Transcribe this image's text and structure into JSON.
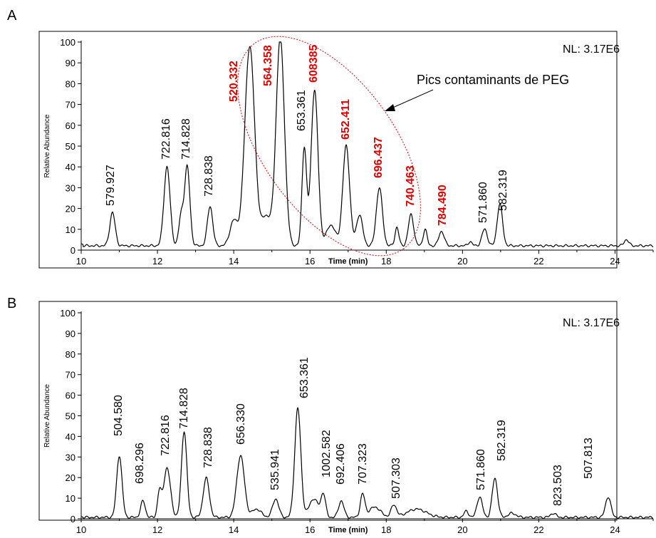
{
  "chart_data": [
    {
      "panel": "A",
      "type": "line",
      "xlabel": "Time (min)",
      "ylabel": "Relative Abundance",
      "xlim": [
        10,
        25
      ],
      "ylim": [
        0,
        100
      ],
      "x_ticks": [
        10,
        12,
        14,
        16,
        18,
        20,
        22,
        24
      ],
      "y_ticks": [
        0,
        10,
        20,
        30,
        40,
        50,
        60,
        70,
        80,
        90,
        100
      ],
      "nl_label": "NL: 3.17E6",
      "annotation": "Pics contaminants de PEG",
      "line_color": "#000000",
      "highlight_color": "#e00000",
      "peaks": [
        {
          "t": 10.82,
          "h": 16,
          "w": 0.07,
          "label": "579.927",
          "hl": false
        },
        {
          "t": 12.25,
          "h": 38,
          "w": 0.08,
          "label": "722.816",
          "hl": false
        },
        {
          "t": 12.78,
          "h": 38,
          "w": 0.07,
          "label": "714.828",
          "hl": false
        },
        {
          "t": 13.38,
          "h": 19,
          "w": 0.07,
          "label": "728.838",
          "hl": false
        },
        {
          "t": 14.42,
          "h": 96,
          "w": 0.13,
          "label": "520.332",
          "hl": true
        },
        {
          "t": 15.22,
          "h": 100,
          "w": 0.11,
          "label": "564.358",
          "hl": true
        },
        {
          "t": 15.85,
          "h": 47,
          "w": 0.06,
          "label": "653.361",
          "hl": false
        },
        {
          "t": 16.12,
          "h": 75,
          "w": 0.09,
          "label": "608385",
          "hl": true
        },
        {
          "t": 16.95,
          "h": 48,
          "w": 0.09,
          "label": "652.411",
          "hl": true
        },
        {
          "t": 17.82,
          "h": 28,
          "w": 0.08,
          "label": "696.437",
          "hl": true
        },
        {
          "t": 18.65,
          "h": 15,
          "w": 0.07,
          "label": "740.463",
          "hl": true
        },
        {
          "t": 19.45,
          "h": 7,
          "w": 0.07,
          "label": "784.490",
          "hl": true
        },
        {
          "t": 20.58,
          "h": 8,
          "w": 0.07,
          "label": "571.860",
          "hl": false
        },
        {
          "t": 20.98,
          "h": 20,
          "w": 0.07,
          "label": "582.319",
          "hl": false
        }
      ],
      "minor_peaks": [
        {
          "t": 12.62,
          "h": 14,
          "w": 0.06
        },
        {
          "t": 14.0,
          "h": 12,
          "w": 0.1
        },
        {
          "t": 14.85,
          "h": 14,
          "w": 0.12
        },
        {
          "t": 16.55,
          "h": 10,
          "w": 0.12
        },
        {
          "t": 17.3,
          "h": 15,
          "w": 0.08
        },
        {
          "t": 18.28,
          "h": 9,
          "w": 0.05
        },
        {
          "t": 19.02,
          "h": 8,
          "w": 0.05
        },
        {
          "t": 20.2,
          "h": 2,
          "w": 0.05
        },
        {
          "t": 24.3,
          "h": 3,
          "w": 0.06
        }
      ],
      "baseline": 3
    },
    {
      "panel": "B",
      "type": "line",
      "xlabel": "Time (min)",
      "ylabel": "Relative Abundance",
      "xlim": [
        10,
        25
      ],
      "ylim": [
        0,
        100
      ],
      "x_ticks": [
        10,
        12,
        14,
        16,
        18,
        20,
        22,
        24
      ],
      "y_ticks": [
        0,
        10,
        20,
        30,
        40,
        50,
        60,
        70,
        80,
        90,
        100
      ],
      "nl_label": "NL: 3.17E6",
      "line_color": "#000000",
      "peaks": [
        {
          "t": 11.0,
          "h": 30,
          "w": 0.07,
          "label": "504.580"
        },
        {
          "t": 11.62,
          "h": 8,
          "w": 0.06,
          "label": "698.296"
        },
        {
          "t": 12.25,
          "h": 24,
          "w": 0.09,
          "label": "722.816"
        },
        {
          "t": 12.7,
          "h": 42,
          "w": 0.07,
          "label": "714.828"
        },
        {
          "t": 13.28,
          "h": 19,
          "w": 0.08,
          "label": "728.838"
        },
        {
          "t": 14.18,
          "h": 30,
          "w": 0.1,
          "label": "656.330"
        },
        {
          "t": 15.1,
          "h": 9,
          "w": 0.08,
          "label": "535.941"
        },
        {
          "t": 15.68,
          "h": 53,
          "w": 0.08,
          "label": "653.361"
        },
        {
          "t": 16.35,
          "h": 11,
          "w": 0.06,
          "label": "1002.582"
        },
        {
          "t": 16.82,
          "h": 8,
          "w": 0.07,
          "label": "692.406"
        },
        {
          "t": 17.38,
          "h": 11,
          "w": 0.06,
          "label": "707.323"
        },
        {
          "t": 18.2,
          "h": 6,
          "w": 0.07,
          "label": "507.303"
        },
        {
          "t": 20.45,
          "h": 10,
          "w": 0.07,
          "label": "571.860"
        },
        {
          "t": 20.85,
          "h": 19,
          "w": 0.07,
          "label": "582.319"
        },
        {
          "t": 22.38,
          "h": 2,
          "w": 0.07,
          "label": "823.503"
        },
        {
          "t": 23.82,
          "h": 10,
          "w": 0.07,
          "label": "507.813"
        }
      ],
      "minor_peaks": [
        {
          "t": 12.05,
          "h": 12,
          "w": 0.05
        },
        {
          "t": 14.6,
          "h": 4,
          "w": 0.12
        },
        {
          "t": 16.1,
          "h": 9,
          "w": 0.12
        },
        {
          "t": 17.7,
          "h": 5,
          "w": 0.15
        },
        {
          "t": 18.8,
          "h": 4,
          "w": 0.25
        },
        {
          "t": 20.1,
          "h": 3,
          "w": 0.06
        },
        {
          "t": 21.3,
          "h": 2,
          "w": 0.1
        }
      ],
      "baseline": 1
    }
  ]
}
